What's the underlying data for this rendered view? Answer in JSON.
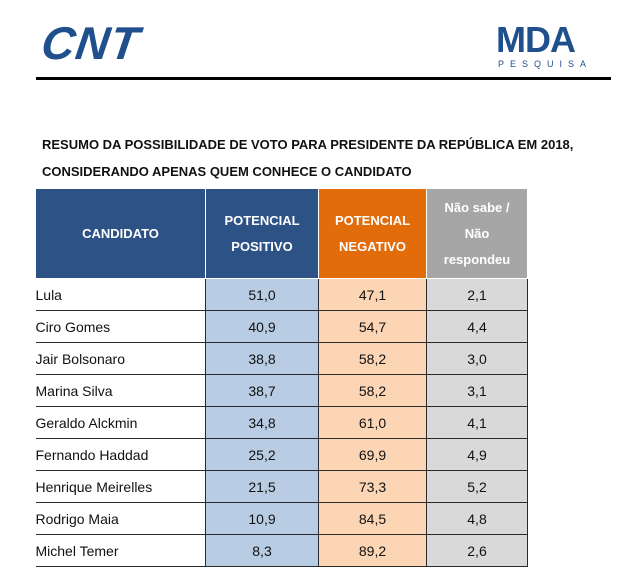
{
  "header": {
    "left_logo_text": "CNT",
    "right_logo_text": "MDA",
    "right_logo_subtitle": "PESQUISA"
  },
  "title": {
    "line1": "RESUMO DA POSSIBILIDADE DE VOTO PARA PRESIDENTE DA REPÚBLICA EM 2018,",
    "line2": "CONSIDERANDO APENAS QUEM CONHECE O CANDIDATO"
  },
  "table": {
    "headers": {
      "candidate": "CANDIDATO",
      "positive_line1": "POTENCIAL",
      "positive_line2": "POSITIVO",
      "negative_line1": "POTENCIAL",
      "negative_line2": "NEGATIVO",
      "unknown_line1": "Não sabe /",
      "unknown_line2": "Não",
      "unknown_line3": "respondeu"
    },
    "rows": [
      {
        "name": "Lula",
        "positive": "51,0",
        "negative": "47,1",
        "unknown": "2,1"
      },
      {
        "name": "Ciro Gomes",
        "positive": "40,9",
        "negative": "54,7",
        "unknown": "4,4"
      },
      {
        "name": "Jair Bolsonaro",
        "positive": "38,8",
        "negative": "58,2",
        "unknown": "3,0"
      },
      {
        "name": "Marina Silva",
        "positive": "38,7",
        "negative": "58,2",
        "unknown": "3,1"
      },
      {
        "name": "Geraldo Alckmin",
        "positive": "34,8",
        "negative": "61,0",
        "unknown": "4,1"
      },
      {
        "name": "Fernando Haddad",
        "positive": "25,2",
        "negative": "69,9",
        "unknown": "4,9"
      },
      {
        "name": "Henrique Meirelles",
        "positive": "21,5",
        "negative": "73,3",
        "unknown": "5,2"
      },
      {
        "name": "Rodrigo Maia",
        "positive": "10,9",
        "negative": "84,5",
        "unknown": "4,8"
      },
      {
        "name": "Michel Temer",
        "positive": "8,3",
        "negative": "89,2",
        "unknown": "2,6"
      }
    ]
  },
  "colors": {
    "brand_blue": "#1f4f8c",
    "header_blue": "#2d5286",
    "header_orange": "#e26b0a",
    "header_gray": "#a6a6a6",
    "cell_blue": "#b8cce4",
    "cell_orange": "#fcd5b4",
    "cell_gray": "#d9d9d9"
  }
}
